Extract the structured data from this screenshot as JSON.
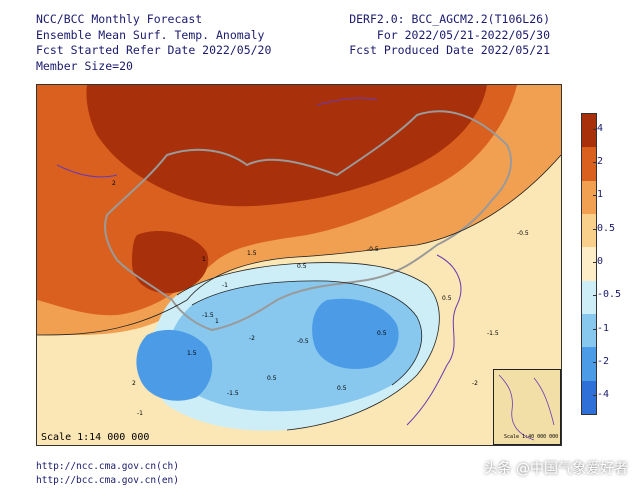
{
  "header": {
    "left": [
      "NCC/BCC Monthly Forecast",
      "Ensemble Mean Surf. Temp. Anomaly",
      "Fcst Started Refer Date 2022/05/20",
      "Member Size=20"
    ],
    "right": [
      "DERF2.0: BCC_AGCM2.2(T106L26)",
      "For 2022/05/21-2022/05/30",
      "Fcst Produced Date 2022/05/21"
    ]
  },
  "map": {
    "scale_label": "Scale 1:14 000 000",
    "inset_label": "Scale 1:40 000 000",
    "contour_labels": [
      "2",
      "1",
      "1.5",
      "0.5",
      "-0.5",
      "-1",
      "-1.5",
      "-2",
      "-0.5",
      "0.5",
      "1",
      "1.5",
      "2",
      "-1",
      "-1.5",
      "0.5",
      "0.5",
      "-2",
      "-1.5",
      "-0.5",
      "0.5"
    ]
  },
  "colorbar": {
    "ticks": [
      "4",
      "2",
      "1",
      "0.5",
      "0",
      "-0.5",
      "-1",
      "-2",
      "-4"
    ],
    "colors": [
      "#a8300a",
      "#d9601e",
      "#f0a050",
      "#f8d08c",
      "#fdeec8",
      "#cdeef7",
      "#88c8ee",
      "#4c9be6",
      "#2f6fd8"
    ]
  },
  "footer": {
    "links": [
      "http://ncc.cma.gov.cn(ch)",
      "http://bcc.cma.gov.cn(en)"
    ],
    "watermark": "头条 @中国气象爱好者"
  }
}
